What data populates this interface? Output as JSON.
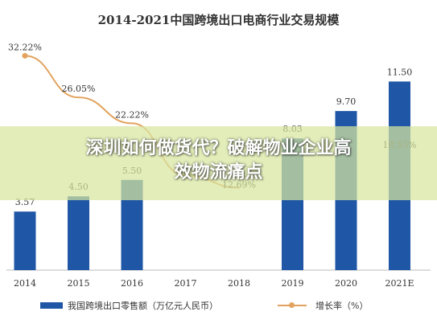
{
  "chart_data": {
    "type": "bar",
    "title": "2014-2021中国跨境出口电商行业交易规模",
    "categories": [
      "2014",
      "2015",
      "2016",
      "2017",
      "2018",
      "2019",
      "2020",
      "2021E"
    ],
    "series": [
      {
        "name": "我国跨境出口零售额（万亿元人民币）",
        "type": "bar",
        "values": [
          3.57,
          4.5,
          5.5,
          null,
          null,
          8.03,
          9.7,
          11.5
        ],
        "labels": [
          "3.57",
          "4.50",
          "5.50",
          "",
          "",
          "8.03",
          "9.70",
          "11.50"
        ],
        "color": "#1f57a6"
      },
      {
        "name": "增长率（%）",
        "type": "line",
        "values": [
          32.22,
          26.05,
          22.22,
          14.5,
          12.69,
          null,
          null,
          18.55
        ],
        "labels": [
          "32.22%",
          "26.05%",
          "22.22%",
          "14.5",
          "12.69%",
          "",
          "",
          "18.55%"
        ],
        "color": "#e3a35e"
      }
    ],
    "grid": false
  },
  "overlay": {
    "line1": "深圳如何做货代？破解物业企业高",
    "line2": "效物流痛点"
  }
}
